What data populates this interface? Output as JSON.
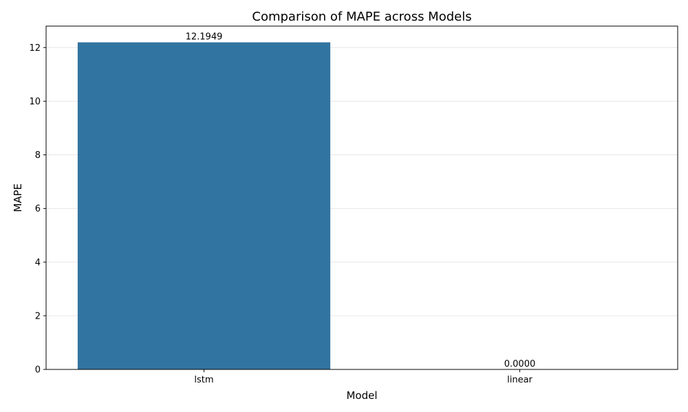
{
  "chart_data": {
    "type": "bar",
    "title": "Comparison of MAPE across Models",
    "xlabel": "Model",
    "ylabel": "MAPE",
    "categories": [
      "lstm",
      "linear"
    ],
    "values": [
      12.1949,
      0.0
    ],
    "data_labels": [
      "12.1949",
      "0.0000"
    ],
    "ylim": [
      0,
      12.8
    ],
    "yticks": [
      0,
      2,
      4,
      6,
      8,
      10,
      12
    ],
    "grid": "horizontal",
    "bar_color": "#3274a1"
  }
}
